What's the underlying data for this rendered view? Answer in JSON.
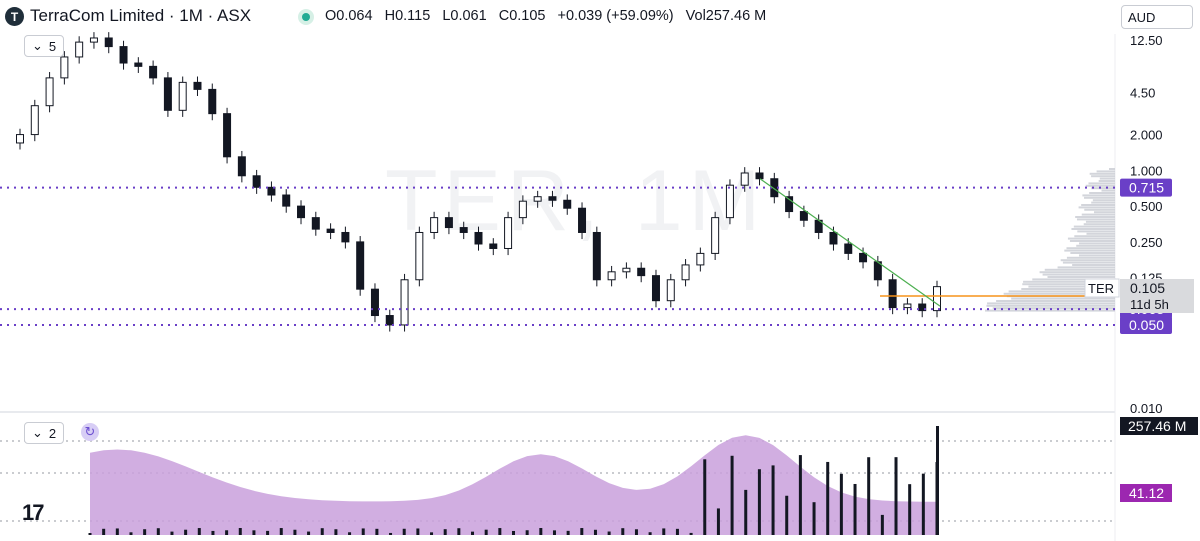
{
  "header": {
    "logo_letter": "T",
    "title": "TerraCom Limited · 1M · ASX",
    "open": "O0.064",
    "high": "H0.115",
    "low": "L0.061",
    "close": "C0.105",
    "change": "+0.039 (+59.09%)",
    "volume": "Vol257.46 M",
    "currency": "AUD"
  },
  "panes": {
    "price_indicator_count": "5",
    "volume_indicator_count": "2"
  },
  "watermark": "TER, 1M",
  "colors": {
    "candle": "#131722",
    "horizontal_line": "#7b3fd0",
    "orange_line": "#f7931a",
    "trendline": "#4caf50",
    "volume_area": "#c9a0dc",
    "label_purple": "#6a3fc7"
  },
  "chart_data": [
    {
      "type": "candlestick",
      "scale": "log",
      "y_ticks": [
        "12.50",
        "4.50",
        "2.000",
        "1.000",
        "0.500",
        "0.250",
        "0.125",
        "0.010"
      ],
      "close_series": [
        2.0,
        3.5,
        6.0,
        9.0,
        12.0,
        13.0,
        11.0,
        8.0,
        7.5,
        6.0,
        3.2,
        5.5,
        4.8,
        3.0,
        1.3,
        0.9,
        0.72,
        0.62,
        0.5,
        0.4,
        0.32,
        0.3,
        0.25,
        0.1,
        0.06,
        0.05,
        0.12,
        0.3,
        0.4,
        0.33,
        0.3,
        0.24,
        0.22,
        0.4,
        0.55,
        0.6,
        0.56,
        0.48,
        0.3,
        0.12,
        0.14,
        0.15,
        0.13,
        0.08,
        0.12,
        0.16,
        0.2,
        0.4,
        0.75,
        0.95,
        0.85,
        0.6,
        0.45,
        0.38,
        0.3,
        0.24,
        0.2,
        0.17,
        0.12,
        0.07,
        0.075,
        0.066,
        0.105
      ],
      "horizontal_levels": [
        {
          "price": "0.715",
          "color": "#6a3fc7"
        },
        {
          "price": "0.068",
          "color": "#6a3fc7"
        },
        {
          "price": "0.050",
          "color": "#6a3fc7"
        }
      ],
      "last_price_label": {
        "symbol": "TER",
        "price": "0.105",
        "countdown": "11d 5h"
      },
      "orange_level": "0.090"
    },
    {
      "type": "area",
      "name": "volume",
      "last_volume_label": "257.46 M",
      "indicator_value_label": "41.12"
    }
  ]
}
